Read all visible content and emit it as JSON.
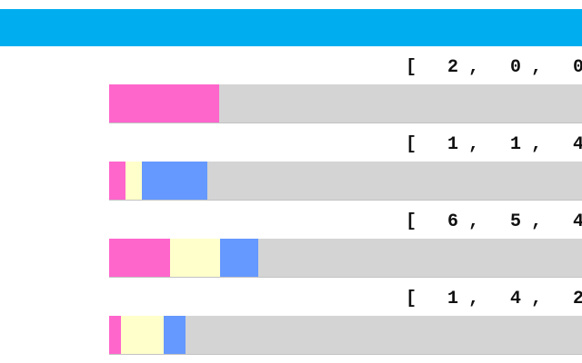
{
  "header": {
    "color": "#00aeef"
  },
  "segment_colors": [
    "#ff66cc",
    "#ffffcc",
    "#6699ff"
  ],
  "track_color": "#d4d4d4",
  "rows": [
    {
      "label": "[ 2, 0, 0",
      "values": [
        0.233,
        0,
        0
      ]
    },
    {
      "label": "[ 1, 1, 4",
      "values": [
        0.035,
        0.035,
        0.138
      ]
    },
    {
      "label": "[ 6, 5, 4",
      "values": [
        0.129,
        0.106,
        0.08
      ]
    },
    {
      "label": "[ 1, 4, 2",
      "values": [
        0.025,
        0.09,
        0.046
      ]
    }
  ]
}
